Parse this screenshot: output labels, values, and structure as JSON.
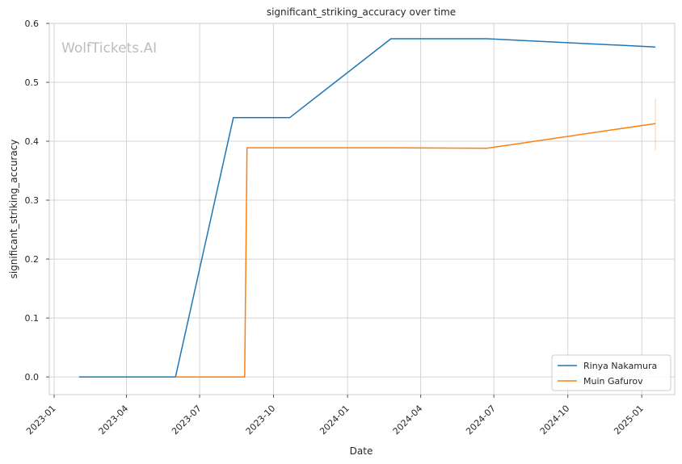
{
  "chart_data": {
    "type": "line",
    "title": "significant_striking_accuracy over time",
    "xlabel": "Date",
    "ylabel": "significant_striking_accuracy",
    "watermark": "WolfTickets.AI",
    "x_ticks": [
      "2023-01",
      "2023-04",
      "2023-07",
      "2023-10",
      "2024-01",
      "2024-04",
      "2024-07",
      "2024-10",
      "2025-01"
    ],
    "y_ticks": [
      "0.0",
      "0.1",
      "0.2",
      "0.3",
      "0.4",
      "0.5",
      "0.6"
    ],
    "xlim": [
      "2022-12-26",
      "2025-02-11"
    ],
    "ylim": [
      -0.03,
      0.6
    ],
    "grid": true,
    "legend_position": "lower-right",
    "series": [
      {
        "name": "Rinya Nakamura",
        "color": "#1f77b4",
        "points": [
          {
            "x": "2023-02-01",
            "y": 0.0
          },
          {
            "x": "2023-06-01",
            "y": 0.0
          },
          {
            "x": "2023-08-12",
            "y": 0.44
          },
          {
            "x": "2023-10-21",
            "y": 0.44
          },
          {
            "x": "2024-02-24",
            "y": 0.574
          },
          {
            "x": "2024-06-22",
            "y": 0.574
          },
          {
            "x": "2025-01-18",
            "y": 0.56
          }
        ]
      },
      {
        "name": "Muin Gafurov",
        "color": "#ff7f0e",
        "points": [
          {
            "x": "2023-06-01",
            "y": 0.0
          },
          {
            "x": "2023-08-26",
            "y": 0.0
          },
          {
            "x": "2023-08-29",
            "y": 0.389
          },
          {
            "x": "2024-02-24",
            "y": 0.389
          },
          {
            "x": "2024-06-22",
            "y": 0.388
          },
          {
            "x": "2025-01-18",
            "y": 0.43
          }
        ],
        "error_band": {
          "x": "2025-01-18",
          "low": 0.385,
          "high": 0.473
        }
      }
    ]
  }
}
